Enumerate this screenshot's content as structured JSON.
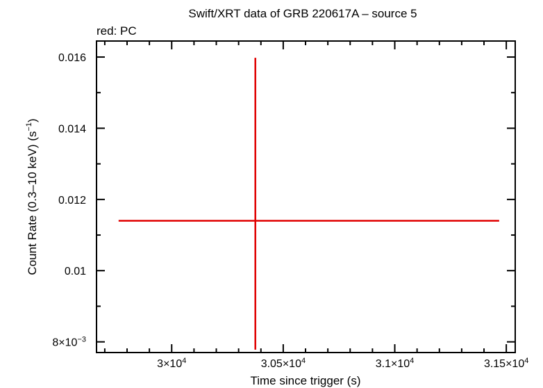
{
  "chart_data": {
    "type": "scatter",
    "title": "Swift/XRT data of GRB 220617A – source 5",
    "subtitle": "red: PC",
    "xlabel": "Time since trigger (s)",
    "ylabel_main": "Count Rate (0.3–10 keV) (s",
    "ylabel_sup": "−1",
    "ylabel_end": ")",
    "xlim": [
      29663,
      31540
    ],
    "ylim": [
      0.0077,
      0.01645
    ],
    "x_ticks": [
      {
        "value": 30000,
        "mant": "3×10",
        "exp": "4"
      },
      {
        "value": 30500,
        "mant": "3.05×10",
        "exp": "4"
      },
      {
        "value": 31000,
        "mant": "3.1×10",
        "exp": "4"
      },
      {
        "value": 31500,
        "mant": "3.15×10",
        "exp": "4"
      }
    ],
    "y_ticks": [
      {
        "value": 0.008,
        "mant": "8×10",
        "exp": "−3"
      },
      {
        "value": 0.01,
        "mant": "0.01",
        "exp": ""
      },
      {
        "value": 0.012,
        "mant": "0.012",
        "exp": ""
      },
      {
        "value": 0.014,
        "mant": "0.014",
        "exp": ""
      },
      {
        "value": 0.016,
        "mant": "0.016",
        "exp": ""
      }
    ],
    "series": [
      {
        "color": "#e00000",
        "points": [
          {
            "x": 30375,
            "y": 0.0114,
            "xerr_minus": 613,
            "xerr_plus": 1093,
            "yerr_minus": 0.00362,
            "yerr_plus": 0.00458
          }
        ]
      }
    ]
  }
}
